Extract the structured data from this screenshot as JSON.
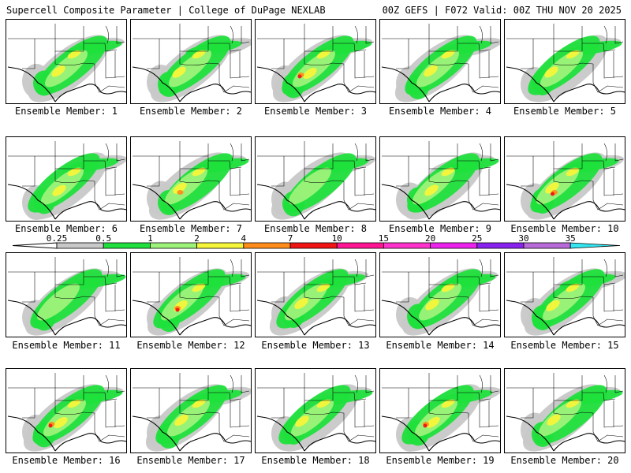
{
  "header": {
    "left_title": "Supercell Composite Parameter | College of DuPage NEXLAB",
    "right_title": "00Z GEFS | F072 Valid: 00Z THU NOV 20 2025"
  },
  "legend": {
    "labels": [
      "0.25",
      "0.5",
      "1",
      "2",
      "4",
      "7",
      "10",
      "15",
      "20",
      "25",
      "30",
      "35"
    ],
    "colors": [
      "#c8c8c8",
      "#1fe03c",
      "#9df27a",
      "#f5f53a",
      "#ff8c1a",
      "#f01414",
      "#ff1493",
      "#ff33cc",
      "#ee22ee",
      "#8822ee",
      "#b86bd8",
      "#33e6f0"
    ]
  },
  "map_colors": {
    "gray": "#c8c8c8",
    "green": "#1fe03c",
    "light_green": "#9df27a",
    "yellow": "#f5f53a",
    "orange": "#ff8c1a",
    "red": "#f01414"
  },
  "members": [
    {
      "label": "Ensemble Member: 1",
      "max_level": "yellow"
    },
    {
      "label": "Ensemble Member: 2",
      "max_level": "yellow"
    },
    {
      "label": "Ensemble Member: 3",
      "max_level": "red"
    },
    {
      "label": "Ensemble Member: 4",
      "max_level": "yellow"
    },
    {
      "label": "Ensemble Member: 5",
      "max_level": "yellow"
    },
    {
      "label": "Ensemble Member: 6",
      "max_level": "yellow"
    },
    {
      "label": "Ensemble Member: 7",
      "max_level": "orange"
    },
    {
      "label": "Ensemble Member: 8",
      "max_level": "light_green"
    },
    {
      "label": "Ensemble Member: 9",
      "max_level": "yellow"
    },
    {
      "label": "Ensemble Member: 10",
      "max_level": "red"
    },
    {
      "label": "Ensemble Member: 11",
      "max_level": "light_green"
    },
    {
      "label": "Ensemble Member: 12",
      "max_level": "red"
    },
    {
      "label": "Ensemble Member: 13",
      "max_level": "yellow"
    },
    {
      "label": "Ensemble Member: 14",
      "max_level": "yellow"
    },
    {
      "label": "Ensemble Member: 15",
      "max_level": "yellow"
    },
    {
      "label": "Ensemble Member: 16",
      "max_level": "red"
    },
    {
      "label": "Ensemble Member: 17",
      "max_level": "yellow"
    },
    {
      "label": "Ensemble Member: 18",
      "max_level": "yellow"
    },
    {
      "label": "Ensemble Member: 19",
      "max_level": "red"
    },
    {
      "label": "Ensemble Member: 20",
      "max_level": "yellow"
    }
  ]
}
